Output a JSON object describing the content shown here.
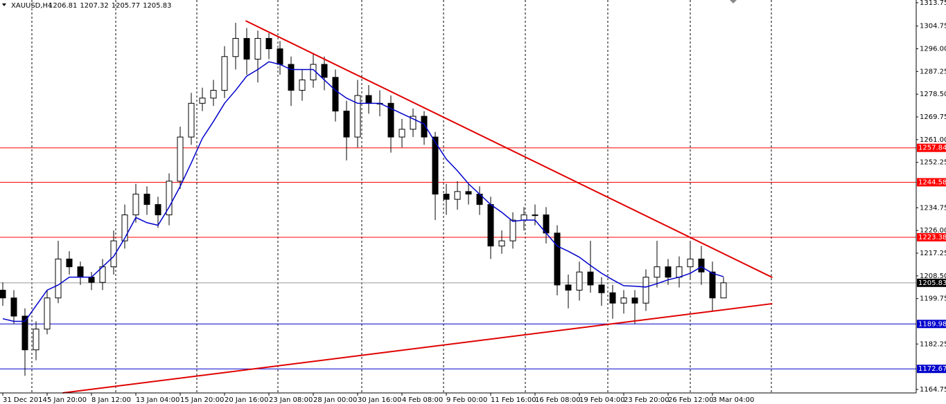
{
  "chart_data": {
    "type": "candlestick",
    "title": "XAUUSD,H4",
    "quote": [
      1206.81,
      1207.32,
      1205.77,
      1205.83
    ],
    "categories": [
      "31 Dec 2014",
      null,
      null,
      null,
      "5 Jan 20:00",
      null,
      null,
      null,
      "8 Jan 12:00",
      null,
      null,
      null,
      "13 Jan 04:00",
      null,
      null,
      null,
      "15 Jan 20:00",
      null,
      null,
      null,
      "20 Jan 16:00",
      null,
      null,
      null,
      "23 Jan 08:00",
      null,
      null,
      null,
      "28 Jan 00:00",
      null,
      null,
      null,
      "30 Jan 16:00",
      null,
      null,
      null,
      "4 Feb 08:00",
      null,
      null,
      null,
      "9 Feb 00:00",
      null,
      null,
      null,
      "11 Feb 16:00",
      null,
      null,
      null,
      "16 Feb 08:00",
      null,
      null,
      null,
      "19 Feb 04:00",
      null,
      null,
      null,
      "23 Feb 20:00",
      null,
      null,
      null,
      "26 Feb 12:00",
      null,
      null,
      null,
      "3 Mar 04:00",
      null
    ],
    "open": [
      1203,
      1200,
      1193,
      1180,
      1188,
      1200,
      1215,
      1212,
      1208,
      1206,
      1212,
      1222,
      1232,
      1240,
      1236,
      1232,
      1245,
      1262,
      1275,
      1277,
      1280,
      1293,
      1300,
      1292,
      1300,
      1296,
      1290,
      1280,
      1284,
      1290,
      1285,
      1272,
      1262,
      1278,
      1275,
      1275,
      1262,
      1265,
      1270,
      1262,
      1240,
      1238,
      1241,
      1240,
      1236,
      1220,
      1222,
      1230,
      1232,
      1232,
      1225,
      1205,
      1203,
      1210,
      1205,
      1202,
      1198,
      1200,
      1198,
      1208,
      1212,
      1208,
      1212,
      1215,
      1210,
      1200
    ],
    "high": [
      1206,
      1203,
      1196,
      1191,
      1203,
      1222,
      1218,
      1214,
      1210,
      1215,
      1226,
      1236,
      1244,
      1243,
      1239,
      1248,
      1266,
      1279,
      1281,
      1284,
      1297,
      1306,
      1304,
      1303,
      1302,
      1299,
      1293,
      1288,
      1294,
      1293,
      1288,
      1276,
      1284,
      1282,
      1280,
      1278,
      1269,
      1273,
      1272,
      1264,
      1244,
      1245,
      1244,
      1243,
      1239,
      1226,
      1233,
      1235,
      1236,
      1235,
      1228,
      1209,
      1214,
      1222,
      1208,
      1205,
      1203,
      1203,
      1211,
      1222,
      1215,
      1216,
      1222,
      1220,
      1214,
      1208
    ],
    "low": [
      1197,
      1190,
      1170,
      1176,
      1186,
      1198,
      1209,
      1205,
      1203,
      1203,
      1209,
      1219,
      1229,
      1232,
      1227,
      1228,
      1242,
      1259,
      1272,
      1274,
      1277,
      1288,
      1286,
      1283,
      1292,
      1286,
      1274,
      1276,
      1281,
      1280,
      1268,
      1253,
      1258,
      1271,
      1270,
      1256,
      1258,
      1262,
      1259,
      1230,
      1232,
      1234,
      1236,
      1232,
      1215,
      1217,
      1219,
      1226,
      1228,
      1221,
      1201,
      1196,
      1199,
      1202,
      1197,
      1192,
      1194,
      1190,
      1195,
      1204,
      1205,
      1204,
      1207,
      1205,
      1195,
      1201
    ],
    "close": [
      1200,
      1193,
      1180,
      1188,
      1200,
      1215,
      1212,
      1208,
      1206,
      1212,
      1222,
      1232,
      1240,
      1236,
      1232,
      1245,
      1262,
      1275,
      1277,
      1280,
      1293,
      1300,
      1292,
      1300,
      1296,
      1290,
      1280,
      1284,
      1290,
      1285,
      1272,
      1262,
      1278,
      1275,
      1275,
      1262,
      1265,
      1270,
      1262,
      1240,
      1238,
      1241,
      1240,
      1236,
      1220,
      1222,
      1230,
      1232,
      1232,
      1225,
      1205,
      1203,
      1210,
      1205,
      1202,
      1198,
      1200,
      1198,
      1208,
      1212,
      1208,
      1212,
      1215,
      1210,
      1200,
      1205.83
    ],
    "bull_color": "#ffffff",
    "bear_color": "#000000",
    "ma": {
      "color": "#0000cc",
      "values": [
        1192,
        1191,
        1191,
        1197,
        1203,
        1205,
        1208,
        1208,
        1208,
        1212,
        1216,
        1223,
        1231,
        1229,
        1228,
        1235,
        1243,
        1252,
        1261.5,
        1268,
        1275,
        1280,
        1285.5,
        1288,
        1291,
        1290,
        1288,
        1288,
        1288,
        1284,
        1280,
        1277,
        1275,
        1275,
        1275,
        1273,
        1271,
        1269,
        1267,
        1260,
        1253.5,
        1249,
        1244,
        1240,
        1236,
        1233,
        1229.5,
        1230,
        1230,
        1225,
        1220,
        1218,
        1215.7,
        1212.5,
        1209.5,
        1207,
        1204.7,
        1204.5,
        1204.2,
        1205.5,
        1207,
        1208,
        1209.5,
        1212,
        1209.5,
        1208.2
      ]
    },
    "trendlines": [
      {
        "color": "#e00000",
        "x": [
          21.9,
          69.4
        ],
        "y": [
          1306.8,
          1207.9
        ]
      },
      {
        "color": "#e00000",
        "x": [
          5.4,
          69.4
        ],
        "y": [
          1163.4,
          1197.8
        ]
      }
    ],
    "levels": [
      {
        "value": 1257.84,
        "color": "#ff0000"
      },
      {
        "value": 1244.58,
        "color": "#ff0000"
      },
      {
        "value": 1223.38,
        "color": "#ff0000"
      },
      {
        "value": 1205.83,
        "color": "#000000",
        "line_color": "#999999"
      },
      {
        "value": 1189.98,
        "color": "#0000cc"
      },
      {
        "value": 1172.67,
        "color": "#0000cc"
      }
    ],
    "ylim": [
      1163.4,
      1314.8
    ],
    "yticks": [
      1313.75,
      1304.75,
      {
        "value": 1296,
        "label": "1296.00"
      },
      1287.25,
      {
        "value": 1278.5,
        "label": "1278.50"
      },
      1269.75,
      {
        "value": 1261,
        "label": "1261.00"
      },
      1252.25,
      1234.75,
      {
        "value": 1226,
        "label": "1226.00"
      },
      1217.25,
      {
        "value": 1208.5,
        "label": "1208.50"
      },
      1199.75,
      1182.25,
      1164.75
    ]
  }
}
